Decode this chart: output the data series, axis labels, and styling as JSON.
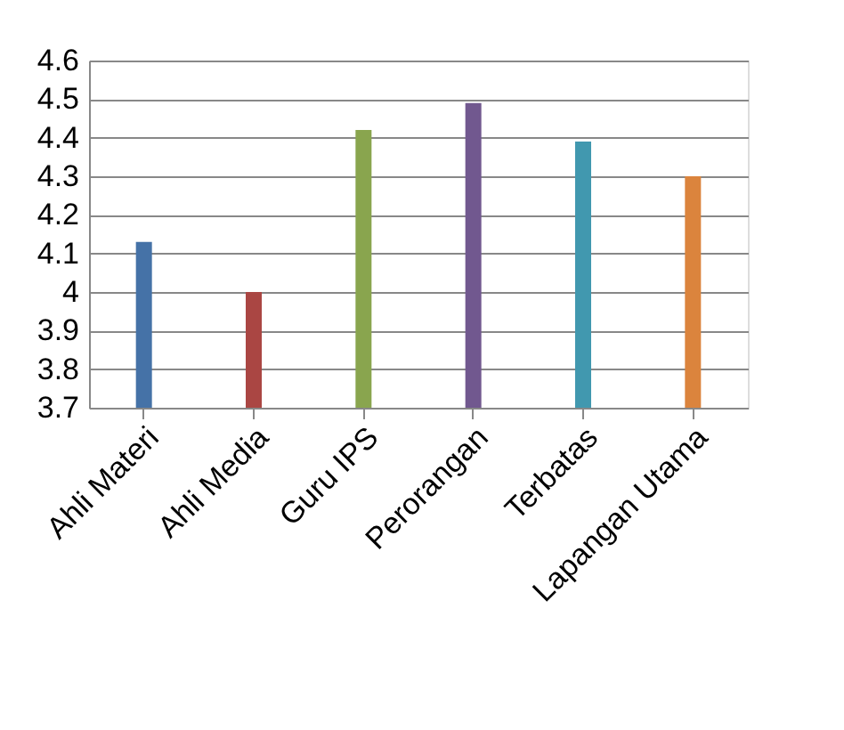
{
  "chart_data": {
    "type": "bar",
    "categories": [
      "Ahli Materi",
      "Ahli Media",
      "Guru IPS",
      "Perorangan",
      "Terbatas",
      "Lapangan Utama"
    ],
    "values": [
      4.13,
      4.0,
      4.42,
      4.49,
      4.39,
      4.3
    ],
    "colors": [
      "#4572a7",
      "#aa4643",
      "#89a54e",
      "#71588f",
      "#4198af",
      "#db843d"
    ],
    "ylim": [
      3.7,
      4.6
    ],
    "yticks": [
      3.7,
      3.8,
      3.9,
      {
        "value": 4,
        "label": "4"
      },
      4.1,
      4.2,
      4.3,
      4.4,
      4.5,
      4.6
    ],
    "grid": "y"
  }
}
